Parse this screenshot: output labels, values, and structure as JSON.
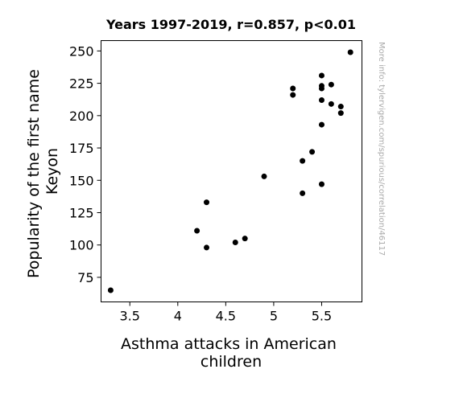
{
  "chart_data": {
    "type": "scatter",
    "title": "Years 1997-2019, r=0.857, p<0.01",
    "xlabel_lines": [
      "Asthma attacks in American",
      "children"
    ],
    "ylabel_lines": [
      "Popularity of the first name",
      "Keyon"
    ],
    "watermark": "More info: tylervigen.com/spurious/correlation/46117",
    "xlim": [
      3.2,
      5.92
    ],
    "ylim": [
      56,
      258
    ],
    "xticks": [
      3.5,
      4,
      4.5,
      5,
      5.5
    ],
    "xtick_labels": [
      "3.5",
      "4",
      "4.5",
      "5",
      "5.5"
    ],
    "yticks": [
      75,
      100,
      125,
      150,
      175,
      200,
      225,
      250
    ],
    "ytick_labels": [
      "75",
      "100",
      "125",
      "150",
      "175",
      "200",
      "225",
      "250"
    ],
    "grid": false,
    "marker_color": "#000000",
    "points": [
      {
        "x": 3.3,
        "y": 65
      },
      {
        "x": 4.2,
        "y": 111
      },
      {
        "x": 4.3,
        "y": 98
      },
      {
        "x": 4.3,
        "y": 133
      },
      {
        "x": 4.6,
        "y": 102
      },
      {
        "x": 4.7,
        "y": 105
      },
      {
        "x": 4.9,
        "y": 153
      },
      {
        "x": 5.2,
        "y": 216
      },
      {
        "x": 5.2,
        "y": 221
      },
      {
        "x": 5.3,
        "y": 140
      },
      {
        "x": 5.3,
        "y": 165
      },
      {
        "x": 5.4,
        "y": 172
      },
      {
        "x": 5.5,
        "y": 147
      },
      {
        "x": 5.5,
        "y": 193
      },
      {
        "x": 5.5,
        "y": 212
      },
      {
        "x": 5.5,
        "y": 221
      },
      {
        "x": 5.5,
        "y": 223
      },
      {
        "x": 5.5,
        "y": 231
      },
      {
        "x": 5.6,
        "y": 209
      },
      {
        "x": 5.6,
        "y": 224
      },
      {
        "x": 5.7,
        "y": 202
      },
      {
        "x": 5.7,
        "y": 207
      },
      {
        "x": 5.8,
        "y": 249
      }
    ]
  }
}
